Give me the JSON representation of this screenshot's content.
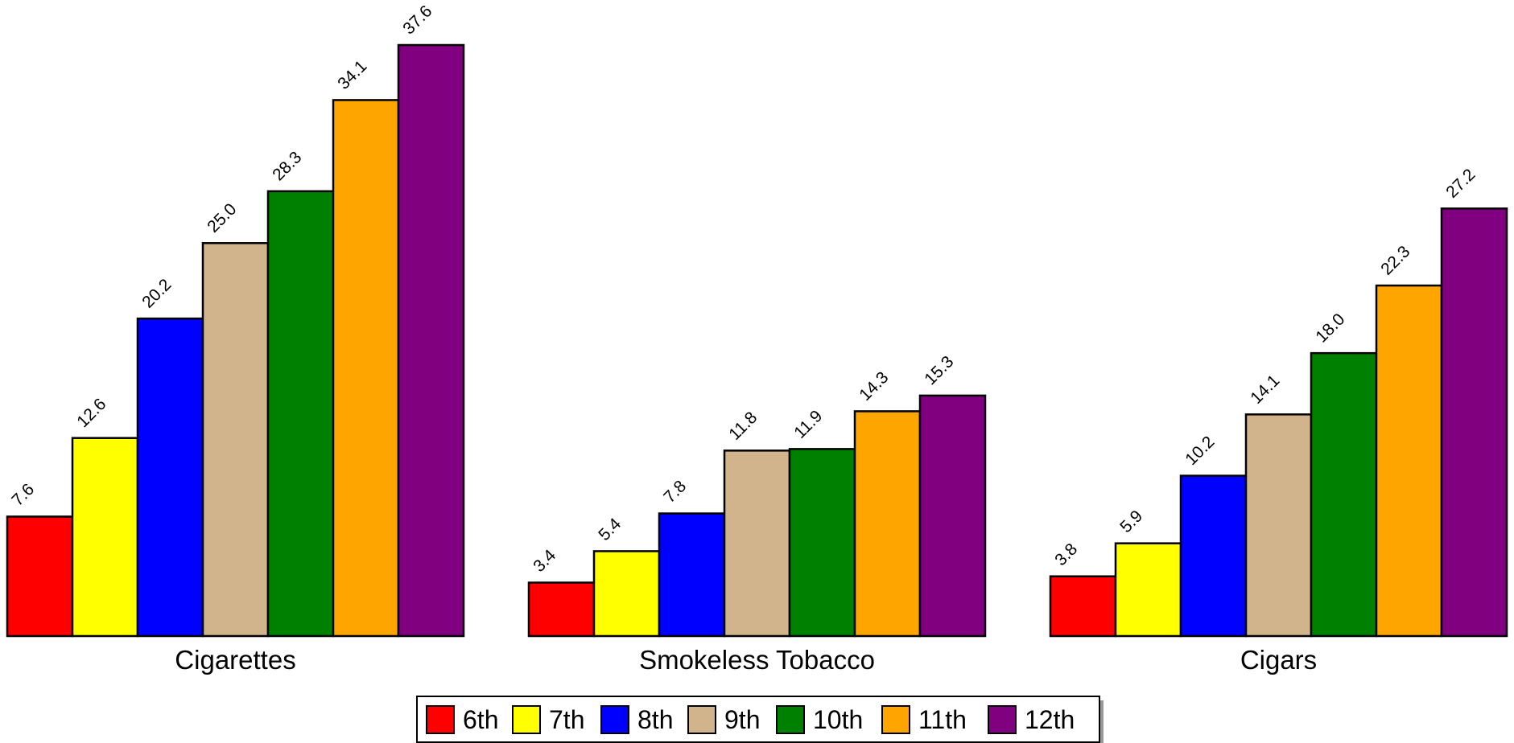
{
  "chart_data": {
    "type": "bar",
    "categories": [
      "Cigarettes",
      "Smokeless Tobacco",
      "Cigars"
    ],
    "series": [
      {
        "name": "6th",
        "color": "#ff0000",
        "values": [
          7.6,
          3.4,
          3.8
        ]
      },
      {
        "name": "7th",
        "color": "#ffff00",
        "values": [
          12.6,
          5.4,
          5.9
        ]
      },
      {
        "name": "8th",
        "color": "#0000ff",
        "values": [
          20.2,
          7.8,
          10.2
        ]
      },
      {
        "name": "9th",
        "color": "#d2b48c",
        "values": [
          25.0,
          11.8,
          14.1
        ]
      },
      {
        "name": "10th",
        "color": "#008000",
        "values": [
          28.3,
          11.9,
          18.0
        ]
      },
      {
        "name": "11th",
        "color": "#ffa500",
        "values": [
          34.1,
          14.3,
          22.3
        ]
      },
      {
        "name": "12th",
        "color": "#800080",
        "values": [
          37.6,
          15.3,
          27.2
        ]
      }
    ],
    "value_labels": [
      [
        "7.6",
        "3.4",
        "3.8"
      ],
      [
        "12.6",
        "5.4",
        "5.9"
      ],
      [
        "20.2",
        "7.8",
        "10.2"
      ],
      [
        "25.0",
        "11.8",
        "14.1"
      ],
      [
        "28.3",
        "11.9",
        "18.0"
      ],
      [
        "34.1",
        "14.3",
        "22.3"
      ],
      [
        "37.6",
        "15.3",
        "27.2"
      ]
    ],
    "title": "",
    "xlabel": "",
    "ylabel": "",
    "ylim": [
      0,
      37.6
    ],
    "grid": false,
    "legend_position": "bottom-center",
    "data_labels": "rotated above bars"
  }
}
